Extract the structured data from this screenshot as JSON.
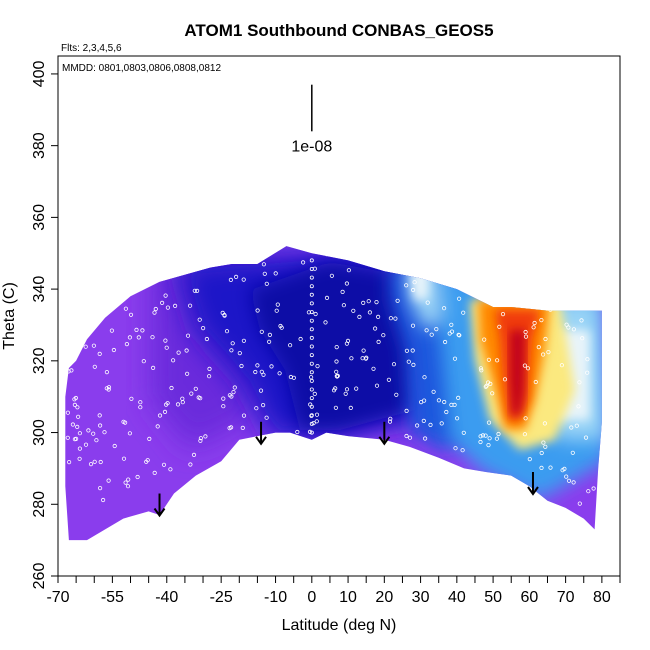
{
  "chart_data": {
    "type": "heatmap",
    "title": "ATOM1 Southbound CONBAS_GEOS5",
    "subtitle_flights": "Flts: 2,3,4,5,6",
    "subtitle_dates": "MMDD: 0801,0803,0806,0808,0812",
    "xlabel": "Latitude (deg N)",
    "ylabel": "Theta (C)",
    "xlim": [
      -70,
      85
    ],
    "ylim": [
      260,
      405
    ],
    "x_tick_labels": [
      -70,
      -55,
      -40,
      -25,
      -10,
      0,
      10,
      20,
      30,
      40,
      50,
      60,
      70,
      80
    ],
    "x_minor_ticks": [
      -65,
      -60,
      -50,
      -45,
      -35,
      -30,
      -20,
      -15,
      -5,
      5,
      15,
      25,
      35,
      45,
      55,
      65,
      75,
      85
    ],
    "y_tick_labels": [
      260,
      280,
      300,
      320,
      340,
      360,
      380,
      400
    ],
    "annotation": {
      "label": "1e-08",
      "lat": 0,
      "theta_top": 397,
      "theta_bottom": 384
    },
    "arrows": [
      {
        "lat": -42,
        "theta": 283
      },
      {
        "lat": -14,
        "theta": 303
      },
      {
        "lat": 20,
        "theta": 303
      },
      {
        "lat": 61,
        "theta": 289
      }
    ],
    "bottom_boundary": [
      [
        -67,
        270
      ],
      [
        -62,
        270
      ],
      [
        -52,
        276
      ],
      [
        -45,
        278
      ],
      [
        -42,
        277
      ],
      [
        -38,
        283
      ],
      [
        -32,
        288
      ],
      [
        -25,
        292
      ],
      [
        -20,
        298
      ],
      [
        -15,
        299
      ],
      [
        -10,
        300
      ],
      [
        -6,
        300
      ],
      [
        0,
        298
      ],
      [
        4,
        300
      ],
      [
        10,
        299
      ],
      [
        20,
        298
      ],
      [
        27,
        296
      ],
      [
        35,
        293
      ],
      [
        42,
        290
      ],
      [
        48,
        289
      ],
      [
        55,
        288
      ],
      [
        60,
        285
      ],
      [
        65,
        281
      ],
      [
        70,
        279
      ],
      [
        75,
        276
      ],
      [
        78,
        273
      ]
    ],
    "top_boundary": [
      [
        78,
        273
      ],
      [
        79,
        290
      ],
      [
        80,
        303
      ],
      [
        80,
        334
      ],
      [
        77,
        334
      ],
      [
        65,
        334
      ],
      [
        55,
        335
      ],
      [
        50,
        335
      ],
      [
        40,
        340
      ],
      [
        30,
        343
      ],
      [
        20,
        345
      ],
      [
        10,
        348
      ],
      [
        0,
        350
      ],
      [
        -7,
        352
      ],
      [
        -15,
        347
      ],
      [
        -22,
        347
      ],
      [
        -28,
        346
      ],
      [
        -35,
        344
      ],
      [
        -42,
        342
      ],
      [
        -50,
        338
      ],
      [
        -57,
        332
      ],
      [
        -62,
        326
      ],
      [
        -65,
        320
      ],
      [
        -67,
        318
      ],
      [
        -68,
        310
      ],
      [
        -68,
        285
      ],
      [
        -67,
        270
      ]
    ]
  },
  "colors": {
    "purple": "#8a3ded",
    "violet": "#6a2cdc",
    "navy": "#1a16c8",
    "deep_blue": "#0a0ea6",
    "blue": "#1c56dd",
    "sky": "#3a9cf0",
    "light_blue": "#9ad4f6",
    "pale": "#e8f4fa",
    "yellow": "#fbe97f",
    "orange": "#ff8a00",
    "red_orange": "#f03a10",
    "dark_red": "#c0001c"
  }
}
